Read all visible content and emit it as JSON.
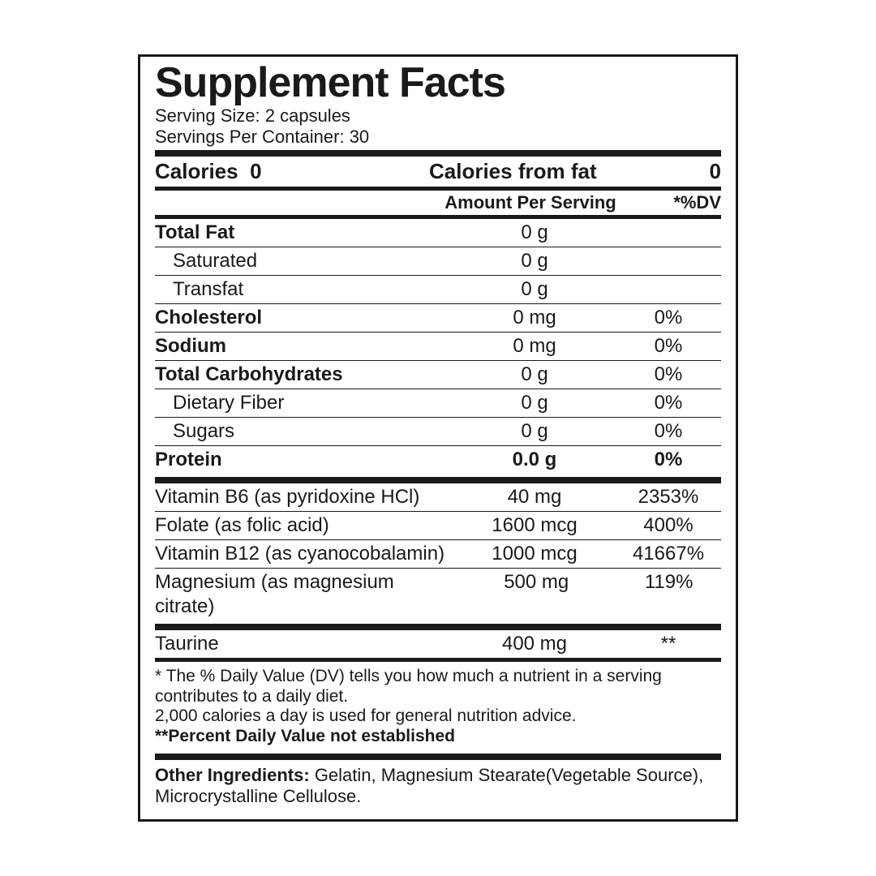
{
  "title": "Supplement Facts",
  "serving_size_label": "Serving Size:",
  "serving_size_value": "2 capsules",
  "servings_per_label": "Servings Per Container:",
  "servings_per_value": "30",
  "calories": {
    "label": "Calories",
    "value": "0",
    "from_fat_label": "Calories from fat",
    "from_fat_value": "0"
  },
  "header": {
    "amount": "Amount Per Serving",
    "dv": "*%DV"
  },
  "macros": [
    {
      "name": "Total Fat",
      "amount": "0 g",
      "dv": "",
      "bold": true,
      "indent": false
    },
    {
      "name": "Saturated",
      "amount": "0 g",
      "dv": "",
      "bold": false,
      "indent": true
    },
    {
      "name": "Transfat",
      "amount": "0 g",
      "dv": "",
      "bold": false,
      "indent": true
    },
    {
      "name": "Cholesterol",
      "amount": "0 mg",
      "dv": "0%",
      "bold": true,
      "indent": false
    },
    {
      "name": "Sodium",
      "amount": "0 mg",
      "dv": "0%",
      "bold": true,
      "indent": false
    },
    {
      "name": "Total Carbohydrates",
      "amount": "0 g",
      "dv": "0%",
      "bold": true,
      "indent": false
    },
    {
      "name": "Dietary Fiber",
      "amount": "0 g",
      "dv": "0%",
      "bold": false,
      "indent": true
    },
    {
      "name": "Sugars",
      "amount": "0 g",
      "dv": "0%",
      "bold": false,
      "indent": true
    }
  ],
  "protein": {
    "name": "Protein",
    "amount": "0.0 g",
    "dv": "0%"
  },
  "micros": [
    {
      "name": "Vitamin B6 (as pyridoxine HCl)",
      "amount": "40 mg",
      "dv": "2353%"
    },
    {
      "name": "Folate (as folic acid)",
      "amount": "1600 mcg",
      "dv": "400%"
    },
    {
      "name": "Vitamin B12 (as cyanocobalamin)",
      "amount": "1000 mcg",
      "dv": "41667%"
    },
    {
      "name": "Magnesium (as magnesium citrate)",
      "amount": "500 mg",
      "dv": "119%"
    }
  ],
  "extra": {
    "name": "Taurine",
    "amount": "400 mg",
    "dv": "**"
  },
  "footnote": {
    "line1": "* The % Daily Value (DV) tells you how much a nutrient in a serving contributes to a daily diet.",
    "line2": "2,000 calories a day is used for general nutrition advice.",
    "line3": "**Percent Daily Value not established"
  },
  "other_label": "Other Ingredients:",
  "other_text": "Gelatin, Magnesium Stearate(Vegetable Source), Microcrystalline Cellulose."
}
